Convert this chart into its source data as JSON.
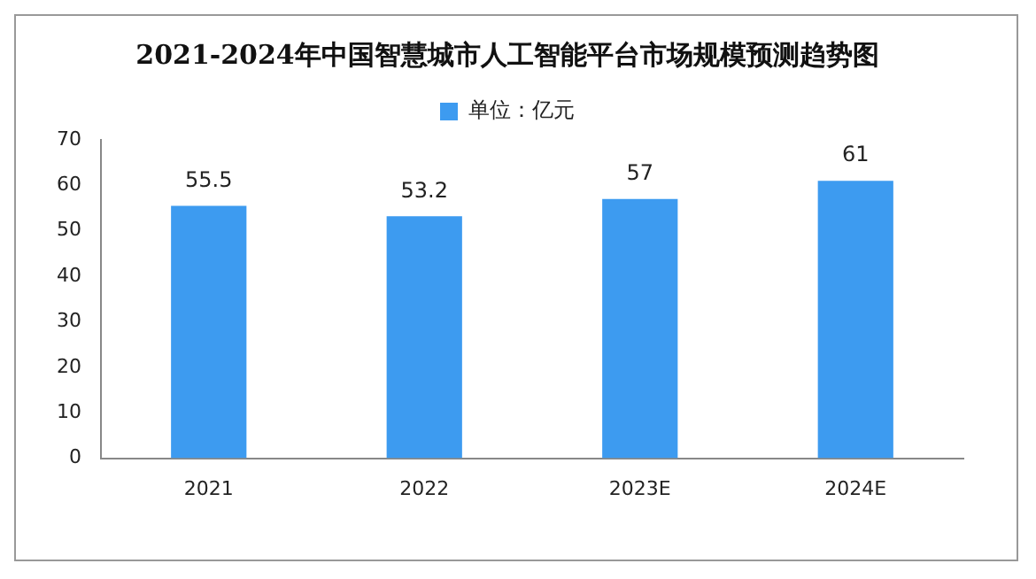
{
  "chart_data": {
    "type": "bar",
    "title": "2021-2024年中国智慧城市人工智能平台市场规模预测趋势图",
    "categories": [
      "2021",
      "2022",
      "2023E",
      "2024E"
    ],
    "series": [
      {
        "name": "单位：亿元",
        "color": "#3d9bf0",
        "values": [
          55.5,
          53.2,
          57,
          61
        ]
      }
    ],
    "ylim": [
      0,
      70
    ],
    "yticks": [
      0,
      10,
      20,
      30,
      40,
      50,
      60,
      70
    ],
    "grid": false,
    "legend": "top",
    "data_labels": true
  }
}
